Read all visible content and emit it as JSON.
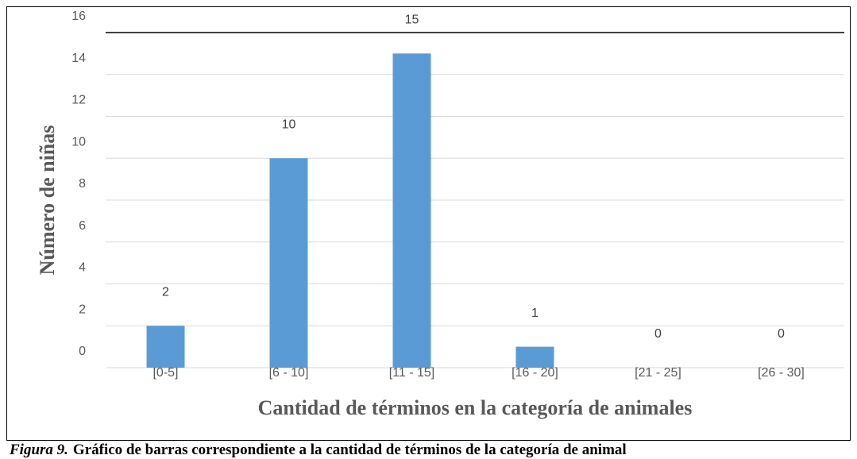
{
  "chart_data": {
    "type": "bar",
    "categories": [
      "[0-5]",
      "[6 - 10]",
      "[11 - 15]",
      "[16 - 20]",
      "[21 - 25]",
      "[26 - 30]"
    ],
    "values": [
      2,
      10,
      15,
      1,
      0,
      0
    ],
    "color": "#5b9bd5",
    "ylim": [
      0,
      16
    ],
    "yticks": [
      0,
      2,
      4,
      6,
      8,
      10,
      12,
      14,
      16
    ],
    "grid": true,
    "x_label": "Cantidad de términos en la categoría de animales",
    "y_label": "Número de niñas",
    "caption_label": "Figura 9.",
    "caption_text": "Gráfico de barras correspondiente a la cantidad de términos de la categoría de animal"
  }
}
